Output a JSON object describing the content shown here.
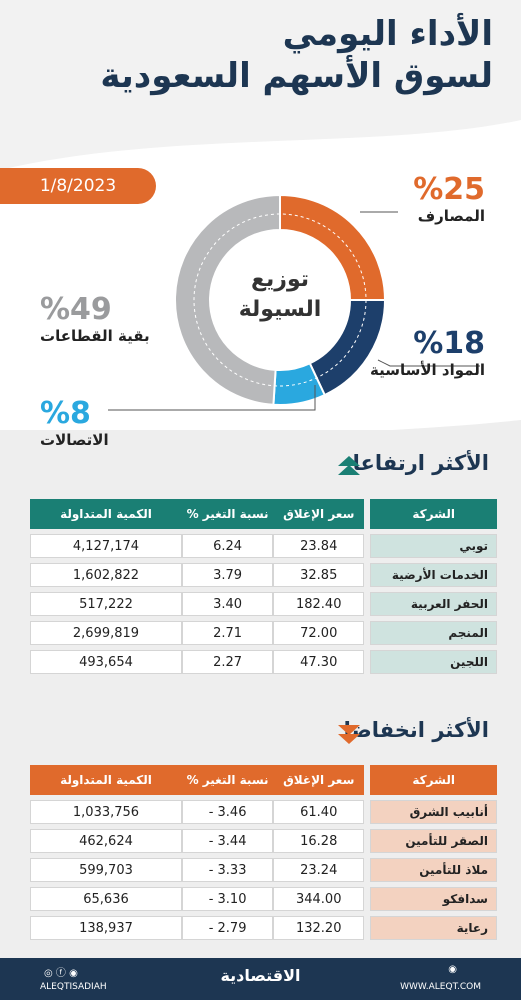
{
  "header": {
    "title_line1": "الأداء اليومي",
    "title_line2": "لسوق الأسهم السعودية",
    "date": "1/8/2023"
  },
  "chart_data": {
    "type": "pie",
    "title": "توزيع السيولة",
    "slices": [
      {
        "name": "المصارف",
        "value": 25,
        "label": "%25",
        "color": "#e06a2c"
      },
      {
        "name": "المواد الأساسية",
        "value": 18,
        "label": "%18",
        "color": "#1d3f6b"
      },
      {
        "name": "الاتصالات",
        "value": 8,
        "label": "%8",
        "color": "#2aa8df"
      },
      {
        "name": "بقية القطاعات",
        "value": 49,
        "label": "%49",
        "color": "#b8b9bb"
      }
    ]
  },
  "center": {
    "line1": "توزيع",
    "line2": "السيولة"
  },
  "rise": {
    "title": "الأكثر ارتفاعا",
    "headers": {
      "company": "الشركة",
      "close": "سعر الإغلاق",
      "change": "نسبة التغير %",
      "volume": "الكمية المتداولة"
    },
    "rows": [
      {
        "company": "توبي",
        "close": "23.84",
        "change": "6.24",
        "volume": "4,127,174"
      },
      {
        "company": "الخدمات الأرضية",
        "close": "32.85",
        "change": "3.79",
        "volume": "1,602,822"
      },
      {
        "company": "الحفر العربية",
        "close": "182.40",
        "change": "3.40",
        "volume": "517,222"
      },
      {
        "company": "المنجم",
        "close": "72.00",
        "change": "2.71",
        "volume": "2,699,819"
      },
      {
        "company": "اللجين",
        "close": "47.30",
        "change": "2.27",
        "volume": "493,654"
      }
    ]
  },
  "fall": {
    "title": "الأكثر انخفاضا",
    "headers": {
      "company": "الشركة",
      "close": "سعر الإغلاق",
      "change": "نسبة التغير %",
      "volume": "الكمية المتداولة"
    },
    "rows": [
      {
        "company": "أنابيب الشرق",
        "close": "61.40",
        "change": "3.46 -",
        "volume": "1,033,756"
      },
      {
        "company": "الصقر للتأمين",
        "close": "16.28",
        "change": "3.44 -",
        "volume": "462,624"
      },
      {
        "company": "ملاذ للتأمين",
        "close": "23.24",
        "change": "3.33 -",
        "volume": "599,703"
      },
      {
        "company": "سدافكو",
        "close": "344.00",
        "change": "3.10 -",
        "volume": "65,636"
      },
      {
        "company": "رعاية",
        "close": "132.20",
        "change": "2.79 -",
        "volume": "138,937"
      }
    ]
  },
  "footer": {
    "brand": "الاقتصادية",
    "handle_left": "ALEQTISADIAH",
    "handle_right": "WWW.ALEQT.COM"
  }
}
